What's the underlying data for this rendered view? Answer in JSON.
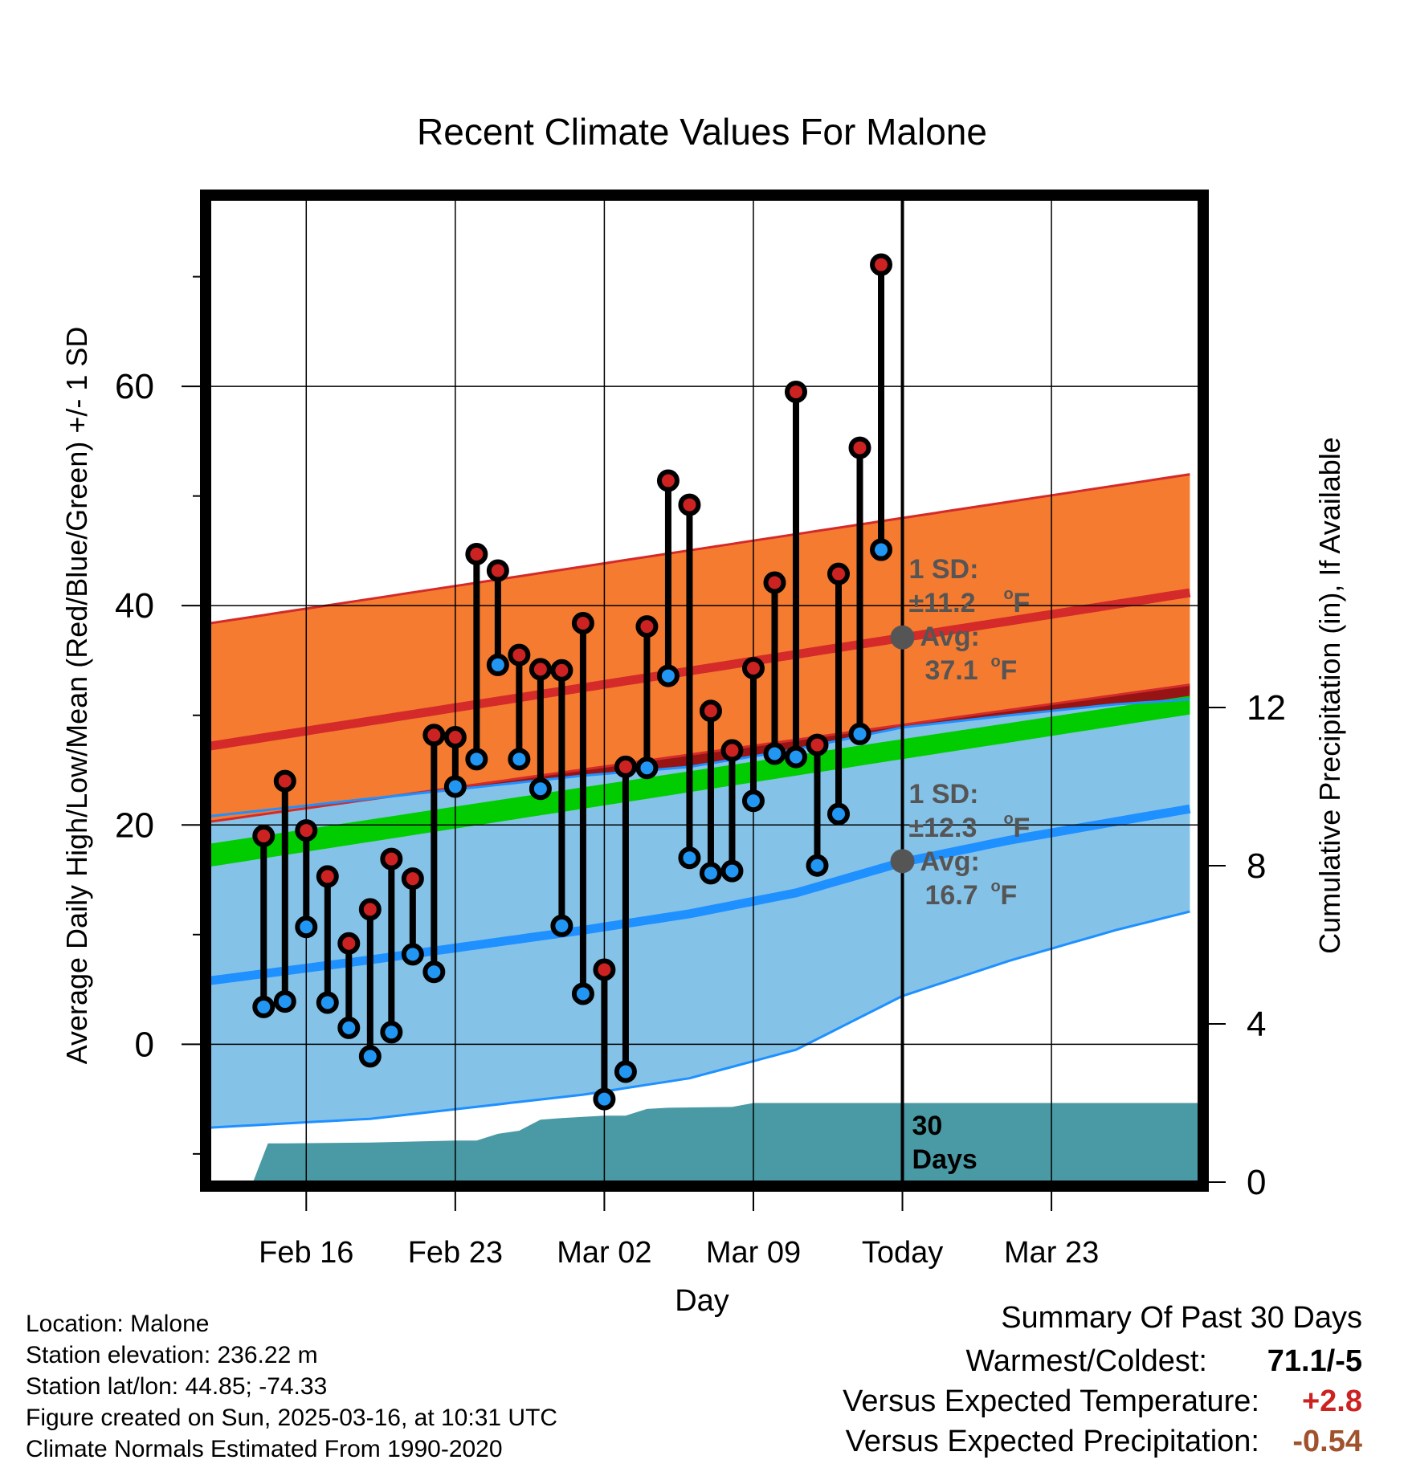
{
  "chart_data": {
    "type": "line",
    "title": "Recent Climate Values For Malone",
    "xlabel": "Day",
    "ylabel": "Average Daily High/Low/Mean (Red/Blue/Green) +/- 1 SD",
    "y2label": "Cumulative Precipitation (in), If Available",
    "ylim": [
      -12.5,
      77
    ],
    "y2lim": [
      0,
      24
    ],
    "xlim": [
      -32.5,
      13.9
    ],
    "x_tick_positions": [
      -28,
      -21,
      -14,
      -7,
      0,
      7
    ],
    "x_tick_labels": [
      "Feb 16",
      "Feb 23",
      "Mar 02",
      "Mar 09",
      "Today",
      "Mar 23"
    ],
    "y_ticks": [
      0,
      20,
      40,
      60
    ],
    "y_minor_ticks": [
      -10,
      10,
      30,
      50,
      70
    ],
    "y2_ticks": [
      0,
      4,
      8,
      12
    ],
    "grid": true,
    "days": [
      -30,
      -29,
      -28,
      -27,
      -26,
      -25,
      -24,
      -23,
      -22,
      -21,
      -20,
      -19,
      -18,
      -17,
      -16,
      -15,
      -14,
      -13,
      -12,
      -11,
      -10,
      -9,
      -8,
      -7,
      -6,
      -5,
      -4,
      -3,
      -2,
      -1
    ],
    "series": [
      {
        "name": "High",
        "color": "#cc2222",
        "values": [
          19.0,
          24.0,
          19.5,
          15.3,
          9.2,
          12.3,
          16.9,
          15.1,
          28.2,
          28.0,
          44.7,
          43.2,
          35.5,
          34.2,
          34.1,
          38.4,
          6.8,
          25.3,
          38.1,
          51.4,
          49.2,
          30.4,
          26.8,
          34.3,
          42.1,
          59.5,
          27.3,
          42.9,
          54.4,
          71.1
        ]
      },
      {
        "name": "Low",
        "color": "#2196f3",
        "values": [
          3.4,
          3.9,
          10.7,
          3.8,
          1.5,
          -1.1,
          1.1,
          8.2,
          6.6,
          23.5,
          26.0,
          34.6,
          26.0,
          23.3,
          10.8,
          4.6,
          -5.0,
          -2.5,
          25.2,
          33.6,
          17.0,
          15.6,
          15.8,
          22.2,
          26.5,
          26.2,
          16.3,
          21.0,
          28.3,
          45.1
        ]
      }
    ],
    "normal_high": {
      "x": [
        -32.5,
        13.9
      ],
      "mean": [
        27.2,
        41.3
      ],
      "upper": [
        38.4,
        52.1
      ],
      "lower": [
        20.3,
        32.9
      ]
    },
    "normal_low": {
      "x": [
        -32.5,
        -25,
        -15,
        -10,
        -5,
        0,
        5,
        10,
        13.9
      ],
      "mean": [
        5.8,
        7.7,
        10.4,
        11.9,
        13.8,
        16.6,
        18.6,
        20.3,
        21.6
      ],
      "upper": [
        20.8,
        22.4,
        24.5,
        25.3,
        26.9,
        28.9,
        30.0,
        31.0,
        31.5
      ],
      "lower": [
        -7.6,
        -6.8,
        -4.6,
        -3.1,
        -0.5,
        4.4,
        7.6,
        10.4,
        12.3
      ]
    },
    "normal_mean": {
      "x": [
        -32.5,
        13.9
      ],
      "lower": [
        16.2,
        30.2
      ],
      "upper": [
        18.3,
        31.9
      ]
    },
    "precipitation_cumulative": {
      "x": [
        -30.5,
        -29.8,
        -29.0,
        -25.0,
        -21.0,
        -20.0,
        -19.0,
        -18.0,
        -17.0,
        -16.0,
        -15.0,
        -14.0,
        -13.0,
        -12.0,
        -11.0,
        -8.0,
        -7.0,
        -6.0,
        -5.0,
        0.0,
        13.9
      ],
      "values": [
        0.0,
        0.98,
        0.98,
        1.0,
        1.05,
        1.05,
        1.22,
        1.3,
        1.58,
        1.62,
        1.65,
        1.68,
        1.68,
        1.85,
        1.88,
        1.9,
        2.0,
        2.0,
        2.0,
        2.0,
        2.0
      ]
    },
    "annotations": {
      "high": {
        "sd_label": "1 SD:",
        "sd_value": "±11.2",
        "avg_label": "Avg:",
        "avg_value": "37.1",
        "unit": "F",
        "degree": "o",
        "marker_value": 37.1
      },
      "low": {
        "sd_label": "1 SD:",
        "sd_value": "±12.3",
        "avg_label": "Avg:",
        "avg_value": "16.7",
        "unit": "F",
        "degree": "o",
        "marker_value": 16.7
      },
      "precip_label_line1": "30",
      "precip_label_line2": "Days"
    },
    "colors": {
      "high_band": "#f47b2f",
      "high_mean": "#d42a2a",
      "overlap_band": "#961414",
      "low_band": "#84c2e8",
      "low_mean": "#1e90ff",
      "mean_band": "#00cc00",
      "precip": "#4a9aa5",
      "today_marker": "#555555",
      "annotation_text": "#555555"
    }
  },
  "footer": {
    "location": "Location: Malone",
    "elevation": "Station elevation: 236.22 m",
    "latlon": "Station lat/lon: 44.85; -74.33",
    "created": "Figure created on Sun, 2025-03-16, at 10:31 UTC",
    "normals": "Climate Normals Estimated From 1990-2020"
  },
  "summary": {
    "title": "Summary Of Past 30 Days",
    "rows": [
      {
        "label": "Warmest/Coldest:",
        "value": "71.1/-5",
        "color": "#000000"
      },
      {
        "label": "Versus Expected Temperature:",
        "value": "+2.8",
        "color": "#cc2222"
      },
      {
        "label": "Versus Expected Precipitation:",
        "value": "-0.54",
        "color": "#a0522d"
      }
    ]
  }
}
